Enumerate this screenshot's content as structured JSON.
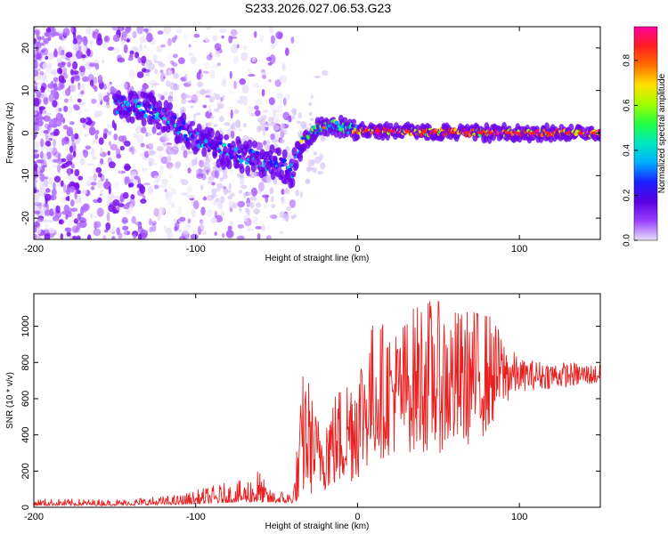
{
  "title": "S233.2026.027.06.53.G23",
  "chart_data": [
    {
      "type": "heatmap",
      "name": "spectrogram",
      "xlabel": "Height of straight line (km)",
      "ylabel": "Frequency (Hz)",
      "xlim": [
        -200,
        150
      ],
      "ylim": [
        -25,
        25
      ],
      "xticks": [
        -200,
        -100,
        0,
        100
      ],
      "yticks": [
        -20,
        -10,
        0,
        10,
        20
      ],
      "colorbar": {
        "label": "Normalized spectral amplitude",
        "range": [
          0,
          0.95
        ],
        "ticks": [
          0.0,
          0.2,
          0.4,
          0.6,
          0.8
        ],
        "colormap": [
          "#e8e0f8",
          "#9a40ff",
          "#5a00e0",
          "#1a20ff",
          "#00b0ff",
          "#00e8c0",
          "#20ff40",
          "#a0ff00",
          "#ffe000",
          "#ff7000",
          "#ff2020",
          "#ff00a0"
        ]
      },
      "ridge": [
        {
          "x": -145,
          "f": 6.5
        },
        {
          "x": -130,
          "f": 5.5
        },
        {
          "x": -120,
          "f": 4.0
        },
        {
          "x": -110,
          "f": 1.5
        },
        {
          "x": -100,
          "f": -1.0
        },
        {
          "x": -90,
          "f": -3.0
        },
        {
          "x": -80,
          "f": -4.5
        },
        {
          "x": -70,
          "f": -5.5
        },
        {
          "x": -60,
          "f": -6.5
        },
        {
          "x": -50,
          "f": -7.5
        },
        {
          "x": -40,
          "f": -8.5
        },
        {
          "x": -35,
          "f": -2.0
        },
        {
          "x": -25,
          "f": 1.0
        },
        {
          "x": -15,
          "f": 2.0
        },
        {
          "x": -5,
          "f": 1.0
        },
        {
          "x": 0,
          "f": 0.5
        },
        {
          "x": 20,
          "f": 0.5
        },
        {
          "x": 50,
          "f": 0.2
        },
        {
          "x": 100,
          "f": 0.0
        },
        {
          "x": 150,
          "f": 0.0
        }
      ]
    },
    {
      "type": "line",
      "name": "snr",
      "xlabel": "Height of straight line (km)",
      "ylabel": "SNR (10 * v/v)",
      "xlim": [
        -200,
        150
      ],
      "ylim": [
        0,
        1180
      ],
      "xticks": [
        -200,
        -100,
        0,
        100
      ],
      "yticks": [
        0,
        200,
        400,
        600,
        800,
        1000
      ],
      "color": "#e82020",
      "envelope": [
        {
          "x": -200,
          "lo": 10,
          "hi": 50
        },
        {
          "x": -150,
          "lo": 10,
          "hi": 45
        },
        {
          "x": -110,
          "lo": 15,
          "hi": 70
        },
        {
          "x": -95,
          "lo": 20,
          "hi": 110
        },
        {
          "x": -80,
          "lo": 25,
          "hi": 140
        },
        {
          "x": -70,
          "lo": 30,
          "hi": 150
        },
        {
          "x": -62,
          "lo": 25,
          "hi": 240
        },
        {
          "x": -55,
          "lo": 25,
          "hi": 100
        },
        {
          "x": -40,
          "lo": 25,
          "hi": 90
        },
        {
          "x": -33,
          "lo": 50,
          "hi": 830
        },
        {
          "x": -25,
          "lo": 80,
          "hi": 500
        },
        {
          "x": -10,
          "lo": 100,
          "hi": 700
        },
        {
          "x": 0,
          "lo": 150,
          "hi": 850
        },
        {
          "x": 10,
          "lo": 250,
          "hi": 1050
        },
        {
          "x": 25,
          "lo": 300,
          "hi": 1000
        },
        {
          "x": 40,
          "lo": 300,
          "hi": 1180
        },
        {
          "x": 60,
          "lo": 300,
          "hi": 1100
        },
        {
          "x": 80,
          "lo": 400,
          "hi": 1100
        },
        {
          "x": 90,
          "lo": 550,
          "hi": 950
        },
        {
          "x": 100,
          "lo": 640,
          "hi": 820
        },
        {
          "x": 150,
          "lo": 680,
          "hi": 790
        }
      ]
    }
  ]
}
